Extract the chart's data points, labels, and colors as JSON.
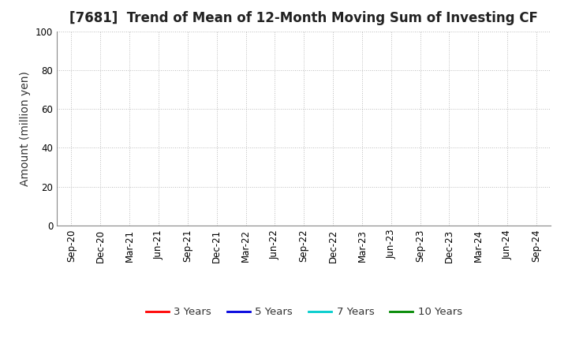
{
  "title": "[7681]  Trend of Mean of 12-Month Moving Sum of Investing CF",
  "ylabel": "Amount (million yen)",
  "ylim": [
    0,
    100
  ],
  "yticks": [
    0,
    20,
    40,
    60,
    80,
    100
  ],
  "x_labels": [
    "Sep-20",
    "Dec-20",
    "Mar-21",
    "Jun-21",
    "Sep-21",
    "Dec-21",
    "Mar-22",
    "Jun-22",
    "Sep-22",
    "Dec-22",
    "Mar-23",
    "Jun-23",
    "Sep-23",
    "Dec-23",
    "Mar-24",
    "Jun-24",
    "Sep-24"
  ],
  "legend_entries": [
    {
      "label": "3 Years",
      "color": "#ff0000"
    },
    {
      "label": "5 Years",
      "color": "#0000dd"
    },
    {
      "label": "7 Years",
      "color": "#00cccc"
    },
    {
      "label": "10 Years",
      "color": "#008800"
    }
  ],
  "background_color": "#ffffff",
  "grid_color": "#bbbbbb",
  "title_fontsize": 12,
  "axis_label_fontsize": 10,
  "tick_fontsize": 8.5,
  "legend_fontsize": 9.5
}
